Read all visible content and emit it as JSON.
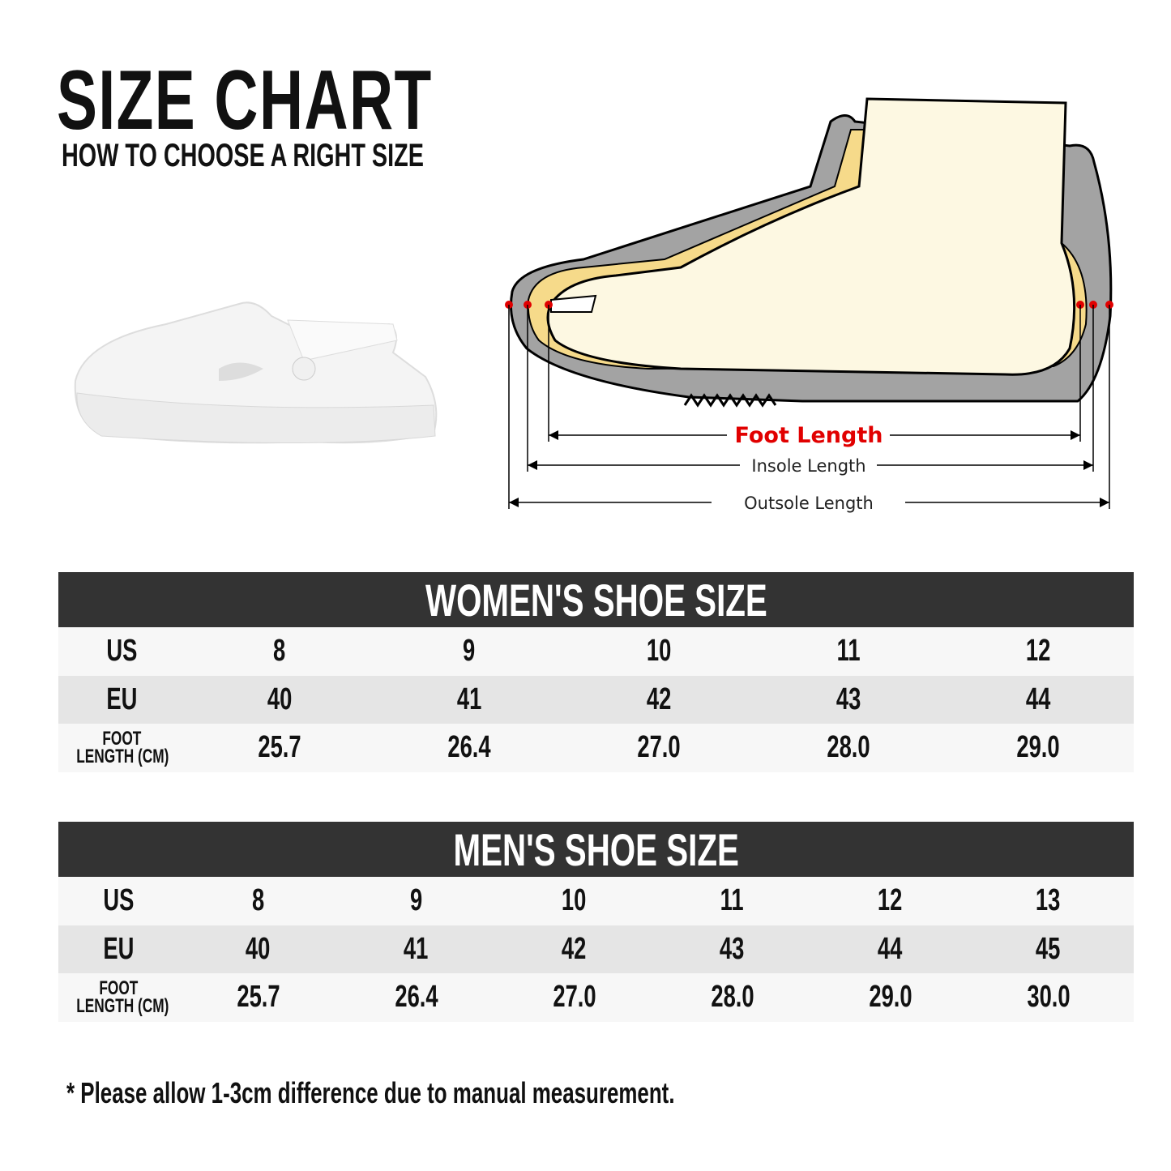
{
  "header": {
    "title": "SIZE CHART",
    "subtitle": "HOW TO CHOOSE A RIGHT SIZE"
  },
  "diagram": {
    "foot_length": "Foot Length",
    "insole_length": "Insole Length",
    "outsole_length": "Outsole Length",
    "colors": {
      "foot": "#fdf8e2",
      "insole": "#f6da8a",
      "sole": "#a3a3a3",
      "marker": "#e10000"
    }
  },
  "women": {
    "title": "WOMEN'S SHOE SIZE",
    "labels": {
      "us": "US",
      "eu": "EU",
      "foot_1": "FOOT",
      "foot_2": "LENGTH (CM)"
    },
    "us": [
      "8",
      "9",
      "10",
      "11",
      "12"
    ],
    "eu": [
      "40",
      "41",
      "42",
      "43",
      "44"
    ],
    "cm": [
      "25.7",
      "26.4",
      "27.0",
      "28.0",
      "29.0"
    ]
  },
  "men": {
    "title": "MEN'S SHOE SIZE",
    "labels": {
      "us": "US",
      "eu": "EU",
      "foot_1": "FOOT",
      "foot_2": "LENGTH (CM)"
    },
    "us": [
      "8",
      "9",
      "10",
      "11",
      "12",
      "13"
    ],
    "eu": [
      "40",
      "41",
      "42",
      "43",
      "44",
      "45"
    ],
    "cm": [
      "25.7",
      "26.4",
      "27.0",
      "28.0",
      "29.0",
      "30.0"
    ]
  },
  "note": "* Please allow 1-3cm difference due to manual measurement."
}
